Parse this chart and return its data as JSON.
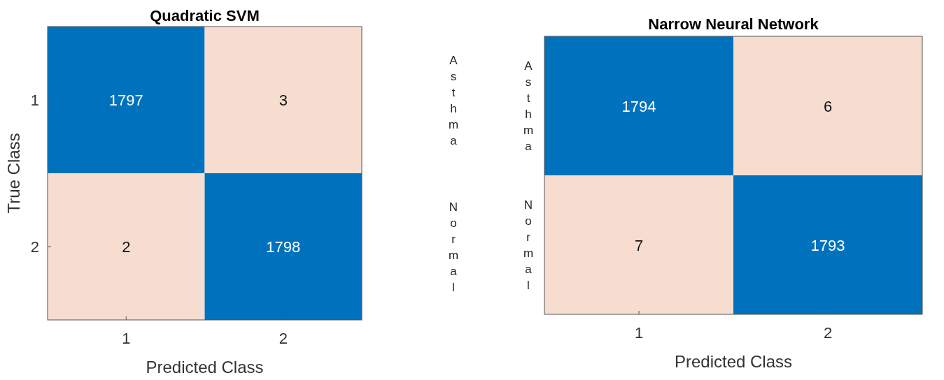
{
  "chart_data": [
    {
      "type": "heatmap",
      "title": "Quadratic SVM",
      "xlabel": "Predicted Class",
      "ylabel": "True Class",
      "categories": [
        "1",
        "2"
      ],
      "y_categories": [
        "1",
        "2"
      ],
      "y2_categories": [
        "Asthma",
        "Normal"
      ],
      "cells": [
        [
          1797,
          3
        ],
        [
          2,
          1798
        ]
      ],
      "data_labels": true,
      "colors": [
        "#f6ddd0",
        "#0072bd"
      ]
    },
    {
      "type": "heatmap",
      "title": "Narrow Neural Network",
      "xlabel": "Predicted Class",
      "categories": [
        "1",
        "2"
      ],
      "y_categories": [
        "Asthma",
        "Normal"
      ],
      "cells": [
        [
          1794,
          6
        ],
        [
          7,
          1793
        ]
      ],
      "data_labels": true,
      "colors": [
        "#f6ddd0",
        "#0072bd"
      ]
    }
  ]
}
